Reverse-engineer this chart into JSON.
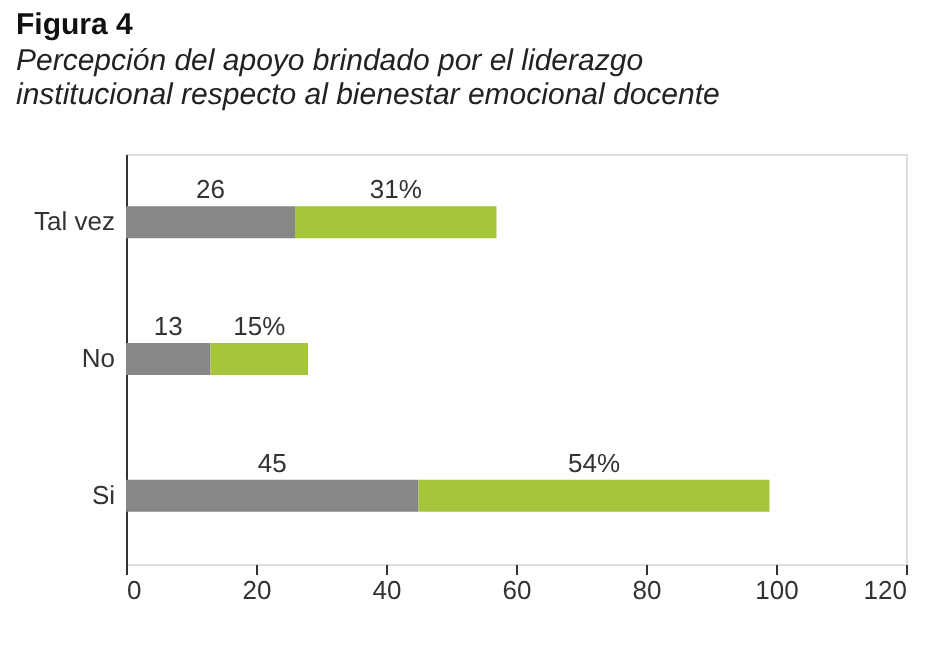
{
  "chart_data": {
    "type": "bar",
    "orientation": "horizontal",
    "stacked": true,
    "title": "Figura 4",
    "subtitle": "Percepción del apoyo brindado por el liderazgo\ninstitucional respecto al bienestar emocional docente",
    "categories": [
      "Tal vez",
      "No",
      "Si"
    ],
    "series": [
      {
        "color": "#878787",
        "values": [
          26,
          13,
          45
        ],
        "value_labels": [
          "26",
          "13",
          "45"
        ]
      },
      {
        "color": "#a5c63b",
        "values": [
          31,
          15,
          54
        ],
        "value_labels": [
          "31%",
          "15%",
          "54%"
        ]
      }
    ],
    "xlim": [
      0,
      120
    ],
    "xticks": [
      0,
      20,
      40,
      60,
      80,
      100,
      120
    ],
    "grid": false
  }
}
